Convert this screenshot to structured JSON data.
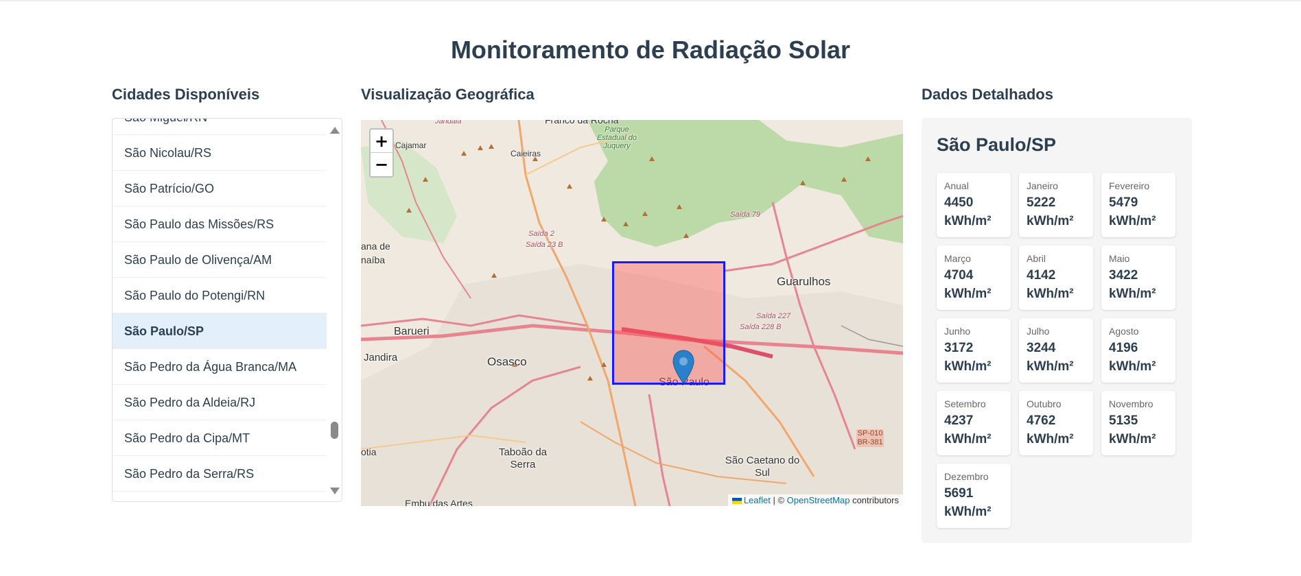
{
  "page": {
    "title": "Monitoramento de Radiação Solar"
  },
  "sections": {
    "cities": "Cidades Disponíveis",
    "map": "Visualização Geográfica",
    "details": "Dados Detalhados"
  },
  "city_list": {
    "items": [
      "São Miguel/RN",
      "São Nicolau/RS",
      "São Patrício/GO",
      "São Paulo das Missões/RS",
      "São Paulo de Olivença/AM",
      "São Paulo do Potengi/RN",
      "São Paulo/SP",
      "São Pedro da Água Branca/MA",
      "São Pedro da Aldeia/RJ",
      "São Pedro da Cipa/MT",
      "São Pedro da Serra/RS",
      ""
    ],
    "selected": "São Paulo/SP"
  },
  "map": {
    "zoom_in": "+",
    "zoom_out": "−",
    "labels": {
      "barueri": "Barueri",
      "osasco": "Osasco",
      "guarulhos": "Guarulhos",
      "sao_paulo": "São Paulo",
      "taboao": "Taboão da Serra",
      "sao_caetano": "São Caetano do Sul",
      "cajamar": "Cajamar",
      "caieiras": "Caieiras",
      "jandira": "Jandira",
      "santana": "ana de",
      "naiba": "naíba",
      "cotia": "otia",
      "embu": "Embu das Artes",
      "franco": "Franco da Rocha",
      "jandaia": "Jandaia",
      "parque": "Parque Estadual do Juquery",
      "saida79": "Saída 79",
      "saida227": "Saída 227",
      "saida228": "Saída 228 B",
      "saida2": "Saída 2",
      "saida23": "Saída 23 B",
      "sp010": "SP-010 BR-381"
    },
    "attribution": {
      "leaflet": "Leaflet",
      "sep": " | © ",
      "osm": "OpenStreetMap",
      "contrib": " contributors"
    },
    "colors": {
      "bbox_border": "#1a1aff",
      "bbox_fill": "#ff5050",
      "marker": "#2a81cb"
    }
  },
  "details": {
    "city": "São Paulo/SP",
    "unit": "kWh/m²",
    "items": [
      {
        "label": "Anual",
        "value": "4450"
      },
      {
        "label": "Janeiro",
        "value": "5222"
      },
      {
        "label": "Fevereiro",
        "value": "5479"
      },
      {
        "label": "Março",
        "value": "4704"
      },
      {
        "label": "Abril",
        "value": "4142"
      },
      {
        "label": "Maio",
        "value": "3422"
      },
      {
        "label": "Junho",
        "value": "3172"
      },
      {
        "label": "Julho",
        "value": "3244"
      },
      {
        "label": "Agosto",
        "value": "4196"
      },
      {
        "label": "Setembro",
        "value": "4237"
      },
      {
        "label": "Outubro",
        "value": "4762"
      },
      {
        "label": "Novembro",
        "value": "5135"
      },
      {
        "label": "Dezembro",
        "value": "5691"
      }
    ]
  }
}
